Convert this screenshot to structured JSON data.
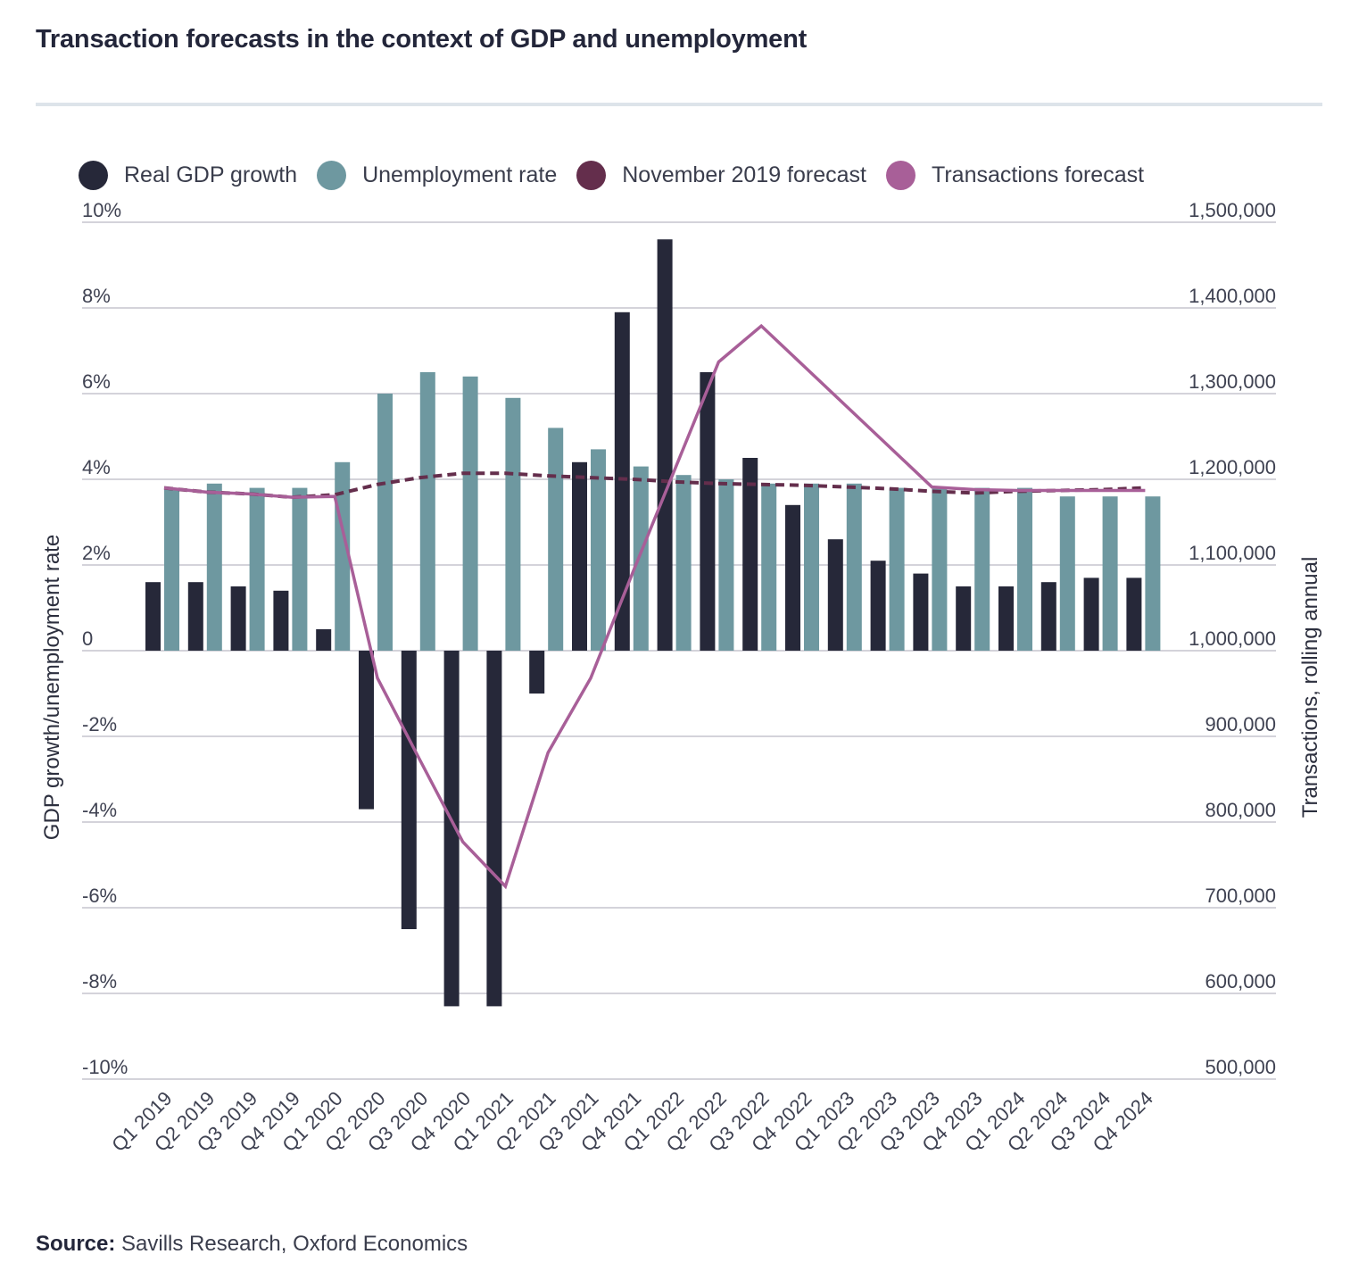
{
  "title": "Transaction forecasts in the context of GDP and unemployment",
  "source": {
    "label": "Source:",
    "text": "Savills Research, Oxford Economics"
  },
  "colors": {
    "gdp": "#262839",
    "unemployment": "#6e98a0",
    "nov2019": "#642e4c",
    "transactions": "#a85f98",
    "grid": "#d4d3da"
  },
  "legend": [
    {
      "label": "Real GDP growth",
      "color": "#262839"
    },
    {
      "label": "Unemployment rate",
      "color": "#6e98a0"
    },
    {
      "label": "November 2019 forecast",
      "color": "#642e4c"
    },
    {
      "label": "Transactions forecast",
      "color": "#a85f98"
    }
  ],
  "chart_data": {
    "type": "bar",
    "title": "Transaction forecasts in the context of GDP and unemployment",
    "xlabel": "",
    "ylabel": "GDP growth/unemployment rate",
    "y2label": "Transactions, rolling annual",
    "ylim": [
      -10,
      10
    ],
    "y2lim": [
      500000,
      1500000
    ],
    "yticks": [
      "10%",
      "8%",
      "6%",
      "4%",
      "2%",
      "0",
      "-2%",
      "-4%",
      "-6%",
      "-8%",
      "-10%"
    ],
    "y2ticks": [
      "1,500,000",
      "1,400,000",
      "1,300,000",
      "1,200,000",
      "1,100,000",
      "1,000,000",
      "900,000",
      "800,000",
      "700,000",
      "600,000",
      "500,000"
    ],
    "grid": true,
    "legend_position": "top",
    "categories": [
      "Q1 2019",
      "Q2 2019",
      "Q3 2019",
      "Q4 2019",
      "Q1 2020",
      "Q2 2020",
      "Q3 2020",
      "Q4 2020",
      "Q1 2021",
      "Q2 2021",
      "Q3 2021",
      "Q4 2021",
      "Q1 2022",
      "Q2 2022",
      "Q3 2022",
      "Q4 2022",
      "Q1 2023",
      "Q2 2023",
      "Q3 2023",
      "Q4 2023",
      "Q1 2024",
      "Q2 2024",
      "Q3 2024",
      "Q4 2024"
    ],
    "series": [
      {
        "name": "Real GDP growth",
        "type": "bar",
        "axis": "left",
        "values": [
          1.6,
          1.6,
          1.5,
          1.4,
          0.5,
          -3.7,
          -6.5,
          -8.3,
          -8.3,
          -1.0,
          4.4,
          7.9,
          9.6,
          6.5,
          4.5,
          3.4,
          2.6,
          2.1,
          1.8,
          1.5,
          1.5,
          1.6,
          1.7,
          1.7
        ]
      },
      {
        "name": "Unemployment rate",
        "type": "bar",
        "axis": "left",
        "values": [
          3.8,
          3.9,
          3.8,
          3.8,
          4.4,
          6.0,
          6.5,
          6.4,
          5.9,
          5.2,
          4.7,
          4.3,
          4.1,
          4.0,
          3.9,
          3.9,
          3.9,
          3.8,
          3.8,
          3.8,
          3.8,
          3.6,
          3.6,
          3.6
        ]
      },
      {
        "name": "November 2019 forecast",
        "type": "line",
        "style": "dashed",
        "axis": "right",
        "values": [
          1190000,
          1185000,
          1183000,
          1179000,
          1182000,
          1194000,
          1202000,
          1207000,
          1207000,
          1204000,
          1202000,
          1200000,
          1197000,
          1195000,
          1194000,
          1193000,
          1191000,
          1189000,
          1186000,
          1184000,
          1186000,
          1187000,
          1188000,
          1190000
        ]
      },
      {
        "name": "Transactions forecast",
        "type": "line",
        "style": "solid",
        "axis": "right",
        "values": [
          1190000,
          1185000,
          1183000,
          1179000,
          1180000,
          968000,
          872000,
          777000,
          725000,
          881000,
          968000,
          1093000,
          1215000,
          1337000,
          1379000,
          1332000,
          1285000,
          1238000,
          1191000,
          1188000,
          1187000,
          1187000,
          1187000,
          1187000
        ]
      }
    ]
  }
}
